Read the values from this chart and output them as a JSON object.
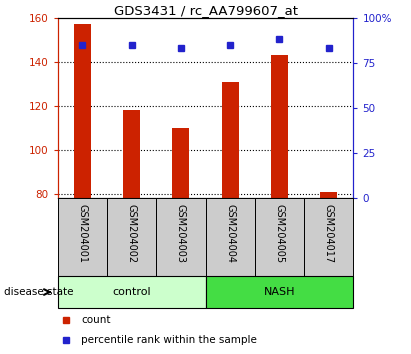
{
  "title": "GDS3431 / rc_AA799607_at",
  "samples": [
    "GSM204001",
    "GSM204002",
    "GSM204003",
    "GSM204004",
    "GSM204005",
    "GSM204017"
  ],
  "bar_values": [
    157,
    118,
    110,
    131,
    143,
    81
  ],
  "percentile_values": [
    85,
    85,
    83,
    85,
    88,
    83
  ],
  "ylim_left": [
    78,
    160
  ],
  "ylim_right": [
    0,
    100
  ],
  "yticks_left": [
    80,
    100,
    120,
    140,
    160
  ],
  "yticks_right": [
    0,
    25,
    50,
    75,
    100
  ],
  "ytick_labels_right": [
    "0",
    "25",
    "50",
    "75",
    "100%"
  ],
  "bar_color": "#cc2200",
  "marker_color": "#2222cc",
  "control_label": "control",
  "nash_label": "NASH",
  "control_color": "#ccffcc",
  "nash_color": "#44dd44",
  "disease_state_label": "disease state",
  "legend_count": "count",
  "legend_percentile": "percentile rank within the sample",
  "left_axis_color": "#cc2200",
  "right_axis_color": "#2222cc",
  "label_bg_color": "#cccccc",
  "n_control": 3,
  "n_nash": 3
}
